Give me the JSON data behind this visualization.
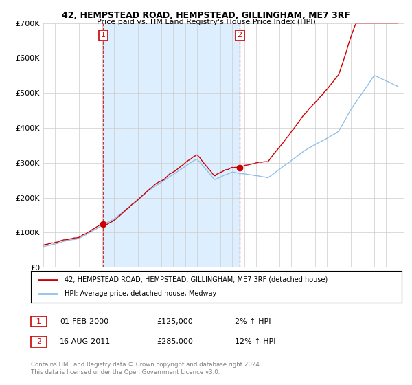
{
  "title": "42, HEMPSTEAD ROAD, HEMPSTEAD, GILLINGHAM, ME7 3RF",
  "subtitle": "Price paid vs. HM Land Registry's House Price Index (HPI)",
  "ylabel_ticks": [
    "£0",
    "£100K",
    "£200K",
    "£300K",
    "£400K",
    "£500K",
    "£600K",
    "£700K"
  ],
  "ylim": [
    0,
    700000
  ],
  "xlim_start": 1995.0,
  "xlim_end": 2025.5,
  "hpi_color": "#90c0e8",
  "price_color": "#cc0000",
  "dashed_line_color": "#cc0000",
  "shade_color": "#ddeeff",
  "marker1_x": 2000.083,
  "marker1_y": 125000,
  "marker2_x": 2011.625,
  "marker2_y": 285000,
  "legend_label1": "42, HEMPSTEAD ROAD, HEMPSTEAD, GILLINGHAM, ME7 3RF (detached house)",
  "legend_label2": "HPI: Average price, detached house, Medway",
  "note1_label": "1",
  "note1_date": "01-FEB-2000",
  "note1_price": "£125,000",
  "note1_hpi": "2% ↑ HPI",
  "note2_label": "2",
  "note2_date": "16-AUG-2011",
  "note2_price": "£285,000",
  "note2_hpi": "12% ↑ HPI",
  "footer": "Contains HM Land Registry data © Crown copyright and database right 2024.\nThis data is licensed under the Open Government Licence v3.0.",
  "background_color": "#ffffff",
  "grid_color": "#cccccc"
}
